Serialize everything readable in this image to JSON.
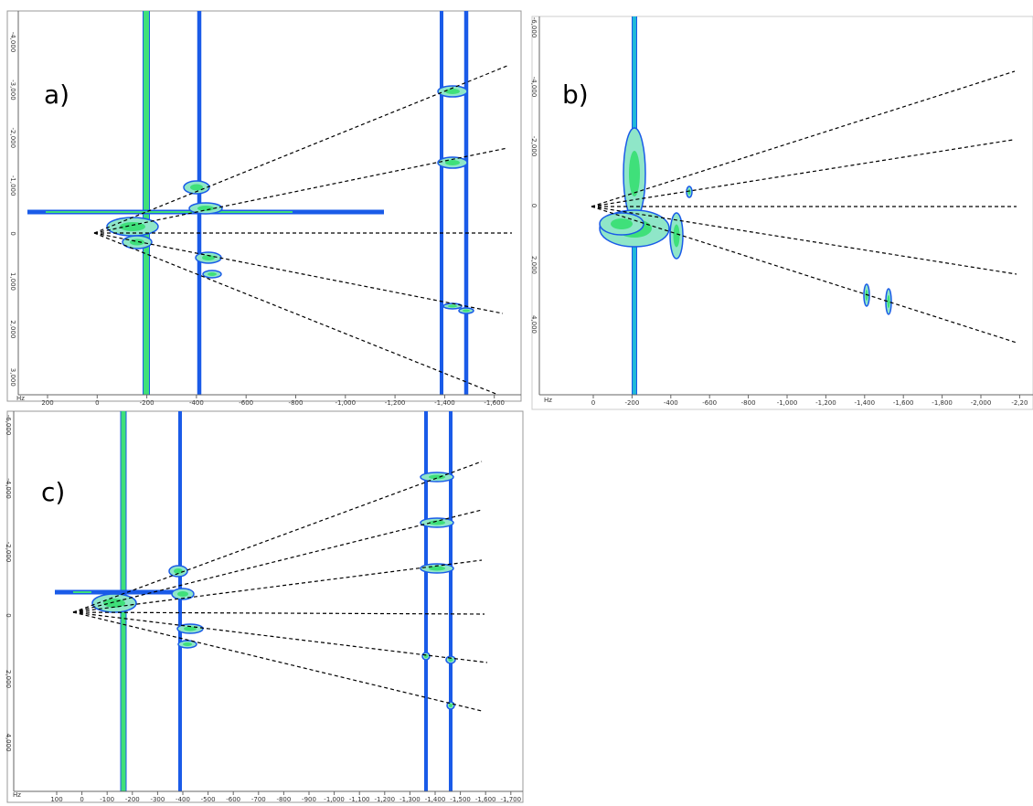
{
  "panels": [
    {
      "label": "a)",
      "unit": "Hz",
      "x_ticks": [
        "200",
        "0",
        "-200",
        "-400",
        "-600",
        "-800",
        "-1,000",
        "-1,200",
        "-1,400",
        "-1,600"
      ],
      "y_ticks": [
        "-4,000",
        "-3,000",
        "-2,000",
        "-1,000",
        "0",
        "1,000",
        "2,000",
        "3,000"
      ]
    },
    {
      "label": "b)",
      "unit": "Hz",
      "x_ticks": [
        "0",
        "-200",
        "-400",
        "-600",
        "-800",
        "-1,000",
        "-1,200",
        "-1,400",
        "-1,600",
        "-1,800",
        "-2,000",
        "-2,20"
      ],
      "y_ticks": [
        "-6,000",
        "-4,000",
        "-2,000",
        "0",
        "2,000",
        "4,000"
      ]
    },
    {
      "label": "c)",
      "unit": "Hz",
      "x_ticks": [
        "100",
        "0",
        "-100",
        "-200",
        "-300",
        "-400",
        "-500",
        "-600",
        "-700",
        "-800",
        "-900",
        "-1,000",
        "-1,100",
        "-1,200",
        "-1,300",
        "-1,400",
        "-1,500",
        "-1,600",
        "-1,700"
      ],
      "y_ticks": [
        "-6,000",
        "-4,000",
        "-2,000",
        "0",
        "2,000",
        "4,000"
      ]
    }
  ]
}
